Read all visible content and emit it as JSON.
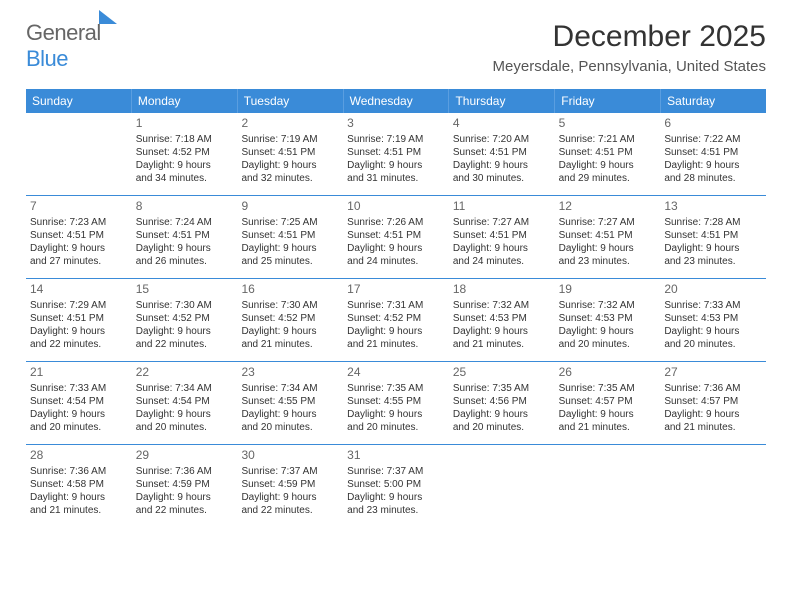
{
  "brand": {
    "part1": "General",
    "part2": "Blue"
  },
  "header": {
    "title": "December 2025",
    "location": "Meyersdale, Pennsylvania, United States"
  },
  "style": {
    "header_bg": "#3a8bd8",
    "rule_color": "#3a8bd8",
    "title_fontsize": 30,
    "location_fontsize": 15,
    "dow_fontsize": 12,
    "cell_fontsize": 10,
    "daynum_color": "#666666",
    "text_color": "#333333",
    "background": "#ffffff"
  },
  "dow": [
    "Sunday",
    "Monday",
    "Tuesday",
    "Wednesday",
    "Thursday",
    "Friday",
    "Saturday"
  ],
  "weeks": [
    [
      null,
      {
        "n": "1",
        "sr": "Sunrise: 7:18 AM",
        "ss": "Sunset: 4:52 PM",
        "d1": "Daylight: 9 hours",
        "d2": "and 34 minutes."
      },
      {
        "n": "2",
        "sr": "Sunrise: 7:19 AM",
        "ss": "Sunset: 4:51 PM",
        "d1": "Daylight: 9 hours",
        "d2": "and 32 minutes."
      },
      {
        "n": "3",
        "sr": "Sunrise: 7:19 AM",
        "ss": "Sunset: 4:51 PM",
        "d1": "Daylight: 9 hours",
        "d2": "and 31 minutes."
      },
      {
        "n": "4",
        "sr": "Sunrise: 7:20 AM",
        "ss": "Sunset: 4:51 PM",
        "d1": "Daylight: 9 hours",
        "d2": "and 30 minutes."
      },
      {
        "n": "5",
        "sr": "Sunrise: 7:21 AM",
        "ss": "Sunset: 4:51 PM",
        "d1": "Daylight: 9 hours",
        "d2": "and 29 minutes."
      },
      {
        "n": "6",
        "sr": "Sunrise: 7:22 AM",
        "ss": "Sunset: 4:51 PM",
        "d1": "Daylight: 9 hours",
        "d2": "and 28 minutes."
      }
    ],
    [
      {
        "n": "7",
        "sr": "Sunrise: 7:23 AM",
        "ss": "Sunset: 4:51 PM",
        "d1": "Daylight: 9 hours",
        "d2": "and 27 minutes."
      },
      {
        "n": "8",
        "sr": "Sunrise: 7:24 AM",
        "ss": "Sunset: 4:51 PM",
        "d1": "Daylight: 9 hours",
        "d2": "and 26 minutes."
      },
      {
        "n": "9",
        "sr": "Sunrise: 7:25 AM",
        "ss": "Sunset: 4:51 PM",
        "d1": "Daylight: 9 hours",
        "d2": "and 25 minutes."
      },
      {
        "n": "10",
        "sr": "Sunrise: 7:26 AM",
        "ss": "Sunset: 4:51 PM",
        "d1": "Daylight: 9 hours",
        "d2": "and 24 minutes."
      },
      {
        "n": "11",
        "sr": "Sunrise: 7:27 AM",
        "ss": "Sunset: 4:51 PM",
        "d1": "Daylight: 9 hours",
        "d2": "and 24 minutes."
      },
      {
        "n": "12",
        "sr": "Sunrise: 7:27 AM",
        "ss": "Sunset: 4:51 PM",
        "d1": "Daylight: 9 hours",
        "d2": "and 23 minutes."
      },
      {
        "n": "13",
        "sr": "Sunrise: 7:28 AM",
        "ss": "Sunset: 4:51 PM",
        "d1": "Daylight: 9 hours",
        "d2": "and 23 minutes."
      }
    ],
    [
      {
        "n": "14",
        "sr": "Sunrise: 7:29 AM",
        "ss": "Sunset: 4:51 PM",
        "d1": "Daylight: 9 hours",
        "d2": "and 22 minutes."
      },
      {
        "n": "15",
        "sr": "Sunrise: 7:30 AM",
        "ss": "Sunset: 4:52 PM",
        "d1": "Daylight: 9 hours",
        "d2": "and 22 minutes."
      },
      {
        "n": "16",
        "sr": "Sunrise: 7:30 AM",
        "ss": "Sunset: 4:52 PM",
        "d1": "Daylight: 9 hours",
        "d2": "and 21 minutes."
      },
      {
        "n": "17",
        "sr": "Sunrise: 7:31 AM",
        "ss": "Sunset: 4:52 PM",
        "d1": "Daylight: 9 hours",
        "d2": "and 21 minutes."
      },
      {
        "n": "18",
        "sr": "Sunrise: 7:32 AM",
        "ss": "Sunset: 4:53 PM",
        "d1": "Daylight: 9 hours",
        "d2": "and 21 minutes."
      },
      {
        "n": "19",
        "sr": "Sunrise: 7:32 AM",
        "ss": "Sunset: 4:53 PM",
        "d1": "Daylight: 9 hours",
        "d2": "and 20 minutes."
      },
      {
        "n": "20",
        "sr": "Sunrise: 7:33 AM",
        "ss": "Sunset: 4:53 PM",
        "d1": "Daylight: 9 hours",
        "d2": "and 20 minutes."
      }
    ],
    [
      {
        "n": "21",
        "sr": "Sunrise: 7:33 AM",
        "ss": "Sunset: 4:54 PM",
        "d1": "Daylight: 9 hours",
        "d2": "and 20 minutes."
      },
      {
        "n": "22",
        "sr": "Sunrise: 7:34 AM",
        "ss": "Sunset: 4:54 PM",
        "d1": "Daylight: 9 hours",
        "d2": "and 20 minutes."
      },
      {
        "n": "23",
        "sr": "Sunrise: 7:34 AM",
        "ss": "Sunset: 4:55 PM",
        "d1": "Daylight: 9 hours",
        "d2": "and 20 minutes."
      },
      {
        "n": "24",
        "sr": "Sunrise: 7:35 AM",
        "ss": "Sunset: 4:55 PM",
        "d1": "Daylight: 9 hours",
        "d2": "and 20 minutes."
      },
      {
        "n": "25",
        "sr": "Sunrise: 7:35 AM",
        "ss": "Sunset: 4:56 PM",
        "d1": "Daylight: 9 hours",
        "d2": "and 20 minutes."
      },
      {
        "n": "26",
        "sr": "Sunrise: 7:35 AM",
        "ss": "Sunset: 4:57 PM",
        "d1": "Daylight: 9 hours",
        "d2": "and 21 minutes."
      },
      {
        "n": "27",
        "sr": "Sunrise: 7:36 AM",
        "ss": "Sunset: 4:57 PM",
        "d1": "Daylight: 9 hours",
        "d2": "and 21 minutes."
      }
    ],
    [
      {
        "n": "28",
        "sr": "Sunrise: 7:36 AM",
        "ss": "Sunset: 4:58 PM",
        "d1": "Daylight: 9 hours",
        "d2": "and 21 minutes."
      },
      {
        "n": "29",
        "sr": "Sunrise: 7:36 AM",
        "ss": "Sunset: 4:59 PM",
        "d1": "Daylight: 9 hours",
        "d2": "and 22 minutes."
      },
      {
        "n": "30",
        "sr": "Sunrise: 7:37 AM",
        "ss": "Sunset: 4:59 PM",
        "d1": "Daylight: 9 hours",
        "d2": "and 22 minutes."
      },
      {
        "n": "31",
        "sr": "Sunrise: 7:37 AM",
        "ss": "Sunset: 5:00 PM",
        "d1": "Daylight: 9 hours",
        "d2": "and 23 minutes."
      },
      null,
      null,
      null
    ]
  ]
}
